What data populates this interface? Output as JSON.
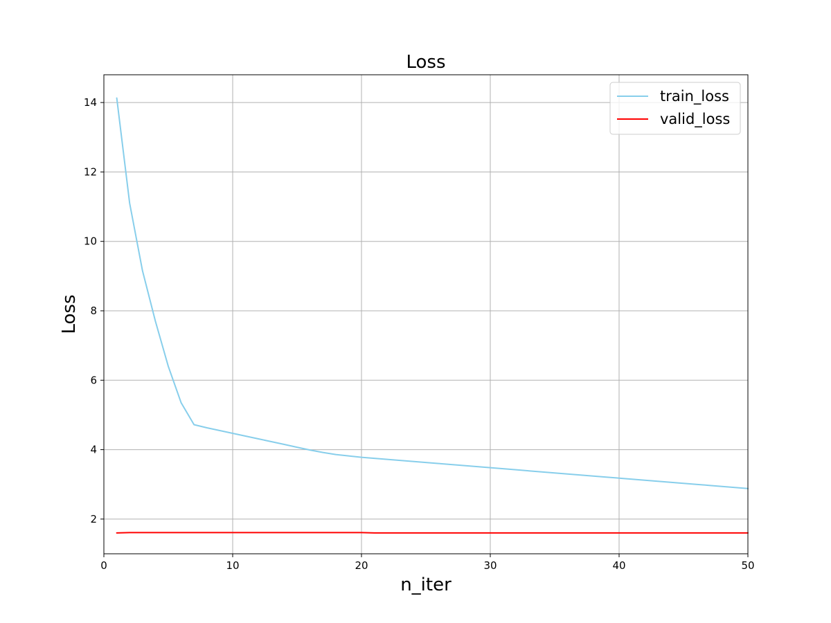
{
  "chart_data": {
    "type": "line",
    "title": "Loss",
    "xlabel": "n_iter",
    "ylabel": "Loss",
    "xlim": [
      0,
      50
    ],
    "ylim": [
      1.0,
      14.8
    ],
    "xticks": [
      0,
      10,
      20,
      30,
      40,
      50
    ],
    "yticks": [
      2,
      4,
      6,
      8,
      10,
      12,
      14
    ],
    "grid": true,
    "legend_position": "top-right",
    "series": [
      {
        "name": "train_loss",
        "color": "#87CEEB",
        "x": [
          1,
          2,
          3,
          4,
          5,
          6,
          7,
          8,
          9,
          10,
          11,
          12,
          13,
          14,
          15,
          16,
          17,
          18,
          19,
          20,
          21,
          22,
          23,
          24,
          25,
          26,
          27,
          28,
          29,
          30,
          31,
          32,
          33,
          34,
          35,
          36,
          37,
          38,
          39,
          40,
          41,
          42,
          43,
          44,
          45,
          46,
          47,
          48,
          49,
          50
        ],
        "y": [
          14.13,
          11.1,
          9.15,
          7.7,
          6.4,
          5.35,
          4.72,
          4.63,
          4.55,
          4.47,
          4.39,
          4.31,
          4.23,
          4.15,
          4.07,
          3.99,
          3.92,
          3.86,
          3.82,
          3.78,
          3.75,
          3.72,
          3.69,
          3.66,
          3.63,
          3.6,
          3.57,
          3.54,
          3.51,
          3.48,
          3.45,
          3.42,
          3.39,
          3.36,
          3.33,
          3.3,
          3.27,
          3.24,
          3.21,
          3.18,
          3.15,
          3.12,
          3.09,
          3.06,
          3.03,
          3.0,
          2.97,
          2.94,
          2.91,
          2.88
        ]
      },
      {
        "name": "valid_loss",
        "color": "#FF0000",
        "x": [
          1,
          2,
          3,
          4,
          5,
          6,
          7,
          8,
          9,
          10,
          11,
          12,
          13,
          14,
          15,
          16,
          17,
          18,
          19,
          20,
          21,
          22,
          23,
          24,
          25,
          26,
          27,
          28,
          29,
          30,
          31,
          32,
          33,
          34,
          35,
          36,
          37,
          38,
          39,
          40,
          41,
          42,
          43,
          44,
          45,
          46,
          47,
          48,
          49,
          50
        ],
        "y": [
          1.6,
          1.61,
          1.61,
          1.61,
          1.61,
          1.61,
          1.61,
          1.61,
          1.61,
          1.61,
          1.61,
          1.61,
          1.61,
          1.61,
          1.61,
          1.61,
          1.61,
          1.61,
          1.61,
          1.61,
          1.6,
          1.6,
          1.6,
          1.6,
          1.6,
          1.6,
          1.6,
          1.6,
          1.6,
          1.6,
          1.6,
          1.6,
          1.6,
          1.6,
          1.6,
          1.6,
          1.6,
          1.6,
          1.6,
          1.6,
          1.6,
          1.6,
          1.6,
          1.6,
          1.6,
          1.6,
          1.6,
          1.6,
          1.6,
          1.6
        ]
      }
    ]
  }
}
